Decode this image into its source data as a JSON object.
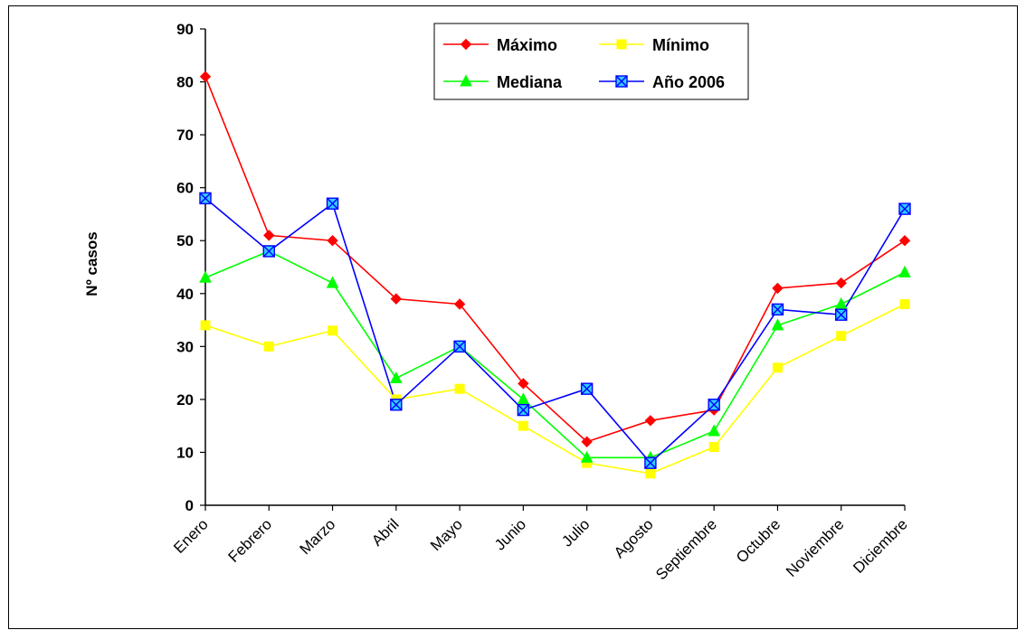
{
  "chart_data": {
    "type": "line",
    "title": "",
    "xlabel": "",
    "ylabel": "Nº casos",
    "ylim": [
      0,
      90
    ],
    "yticks": [
      0,
      10,
      20,
      30,
      40,
      50,
      60,
      70,
      80,
      90
    ],
    "grid": false,
    "legend_position": "top-center",
    "categories": [
      "Enero",
      "Febrero",
      "Marzo",
      "Abril",
      "Mayo",
      "Junio",
      "Julio",
      "Agosto",
      "Septiembre",
      "Octubre",
      "Noviembre",
      "Diciembre"
    ],
    "series": [
      {
        "name": "Máximo",
        "color": "#ff0000",
        "marker": "diamond",
        "values": [
          81,
          51,
          50,
          39,
          38,
          23,
          12,
          16,
          18,
          41,
          42,
          50
        ]
      },
      {
        "name": "Mínimo",
        "color": "#ffff00",
        "marker": "square",
        "values": [
          34,
          30,
          33,
          20,
          22,
          15,
          8,
          6,
          11,
          26,
          32,
          38
        ]
      },
      {
        "name": "Mediana",
        "color": "#00ff00",
        "marker": "triangle",
        "values": [
          43,
          48,
          42,
          24,
          30,
          20,
          9,
          9,
          14,
          34,
          38,
          44
        ]
      },
      {
        "name": "Año 2006",
        "color": "#0000ff",
        "marker": "x-square",
        "marker_fill": "#33ccff",
        "values": [
          58,
          48,
          57,
          19,
          30,
          18,
          22,
          8,
          19,
          37,
          36,
          56
        ]
      }
    ]
  }
}
